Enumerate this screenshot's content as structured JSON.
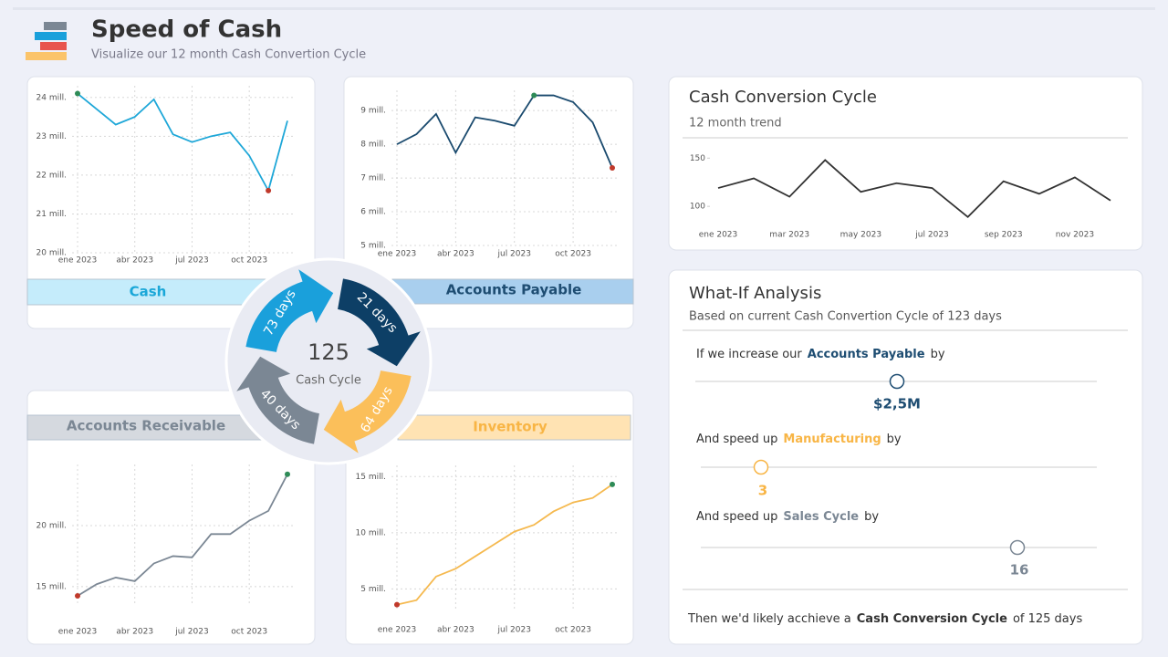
{
  "header": {
    "title": "Speed of Cash",
    "subtitle": "Visualize our 12 month Cash Convertion Cycle"
  },
  "chart_data": [
    {
      "type": "line",
      "title": "Cash",
      "title_color": "#1aa7d8",
      "title_background": "#c5ecfb",
      "categories": [
        "ene 2023",
        null,
        null,
        "abr 2023",
        null,
        null,
        "jul 2023",
        null,
        null,
        "oct 2023",
        null,
        null
      ],
      "values": [
        24.1,
        23.7,
        23.3,
        23.5,
        23.95,
        23.05,
        22.85,
        23.0,
        23.1,
        22.5,
        21.6,
        23.4
      ],
      "color": "#1ea7d8",
      "max_color": "#2e8b57",
      "min_color": "#c0392b",
      "ylim": [
        20,
        24.3
      ],
      "yticks": [
        {
          "value": 20,
          "label": "20 mill."
        },
        {
          "value": 21,
          "label": "21 mill."
        },
        {
          "value": 22,
          "label": "22 mill."
        },
        {
          "value": 23,
          "label": "23 mill."
        },
        {
          "value": 24,
          "label": "24 mill."
        }
      ],
      "grid": true
    },
    {
      "type": "line",
      "title": "Accounts Payable",
      "title_color": "#1e4d72",
      "title_background": "#a9cfee",
      "categories": [
        "ene 2023",
        null,
        null,
        "abr 2023",
        null,
        null,
        "jul 2023",
        null,
        null,
        "oct 2023",
        null,
        null
      ],
      "values": [
        8.0,
        8.3,
        8.9,
        7.75,
        8.8,
        8.7,
        8.55,
        9.45,
        9.45,
        9.25,
        8.65,
        7.3
      ],
      "color": "#1a4a6e",
      "max_color": "#2e8b57",
      "min_color": "#c0392b",
      "ylim": [
        5,
        9.6
      ],
      "yticks": [
        {
          "value": 5,
          "label": "5 mill."
        },
        {
          "value": 6,
          "label": "6 mill."
        },
        {
          "value": 7,
          "label": "7 mill."
        },
        {
          "value": 8,
          "label": "8 mill."
        },
        {
          "value": 9,
          "label": "9 mill."
        }
      ],
      "grid": true
    },
    {
      "type": "line",
      "title": "Accounts Receivable",
      "title_color": "#7b8794",
      "title_background": "#d5d9df",
      "categories": [
        "ene 2023",
        null,
        null,
        "abr 2023",
        null,
        null,
        "jul 2023",
        null,
        null,
        "oct 2023",
        null,
        null
      ],
      "values": [
        14.25,
        15.2,
        15.75,
        15.45,
        16.9,
        17.5,
        17.4,
        19.3,
        19.3,
        20.4,
        21.2,
        24.2
      ],
      "color": "#7b8794",
      "max_color": "#2e8b57",
      "min_color": "#c0392b",
      "ylim": [
        13.5,
        25
      ],
      "yticks": [
        {
          "value": 15,
          "label": "15 mill."
        },
        {
          "value": 20,
          "label": "20 mill."
        }
      ],
      "grid": true
    },
    {
      "type": "line",
      "title": "Inventory",
      "title_color": "#f8b545",
      "title_background": "#ffe3b3",
      "categories": [
        "ene 2023",
        null,
        null,
        "abr 2023",
        null,
        null,
        "jul 2023",
        null,
        null,
        "oct 2023",
        null,
        null
      ],
      "values": [
        3.6,
        4.0,
        6.1,
        6.8,
        7.9,
        9.0,
        10.1,
        10.7,
        11.9,
        12.7,
        13.1,
        14.3
      ],
      "color": "#f5b94f",
      "max_color": "#2e8b57",
      "min_color": "#c0392b",
      "ylim": [
        3,
        16
      ],
      "yticks": [
        {
          "value": 5,
          "label": "5 mill."
        },
        {
          "value": 10,
          "label": "10 mill."
        },
        {
          "value": 15,
          "label": "15 mill."
        }
      ],
      "grid": true
    },
    {
      "type": "line",
      "title": "Cash Conversion Cycle",
      "subtitle": "12 month trend",
      "categories": [
        "ene 2023",
        null,
        "mar 2023",
        null,
        "may 2023",
        null,
        "jul 2023",
        null,
        "sep 2023",
        null,
        "nov 2023",
        null
      ],
      "values": [
        119,
        129,
        110,
        148,
        115,
        124,
        119,
        89,
        126,
        113,
        130,
        106
      ],
      "color": "#333333",
      "ylim": [
        85,
        155
      ],
      "yticks": [
        100,
        150
      ],
      "grid": false
    }
  ],
  "cycle": {
    "total": "125",
    "label": "Cash Cycle",
    "steps": [
      "73 days",
      "21 days",
      "64 days",
      "40 days"
    ]
  },
  "what_if": {
    "title": "What-If Analysis",
    "subtitle": "Based on current Cash Convertion Cycle of 123 days",
    "rows": [
      {
        "prefix": "If we increase our",
        "highlight": "Accounts Payable",
        "suffix": "by",
        "value": "$2,5M"
      },
      {
        "prefix": "And speed up",
        "highlight": "Manufacturing",
        "suffix": "by",
        "value": "3"
      },
      {
        "prefix": "And speed up",
        "highlight": "Sales Cycle",
        "suffix": "by",
        "value": "16"
      }
    ],
    "conclusion": {
      "prefix": "Then we'd likely acchieve a",
      "highlight": "Cash Conversion Cycle",
      "suffix": "of 125 days"
    }
  }
}
